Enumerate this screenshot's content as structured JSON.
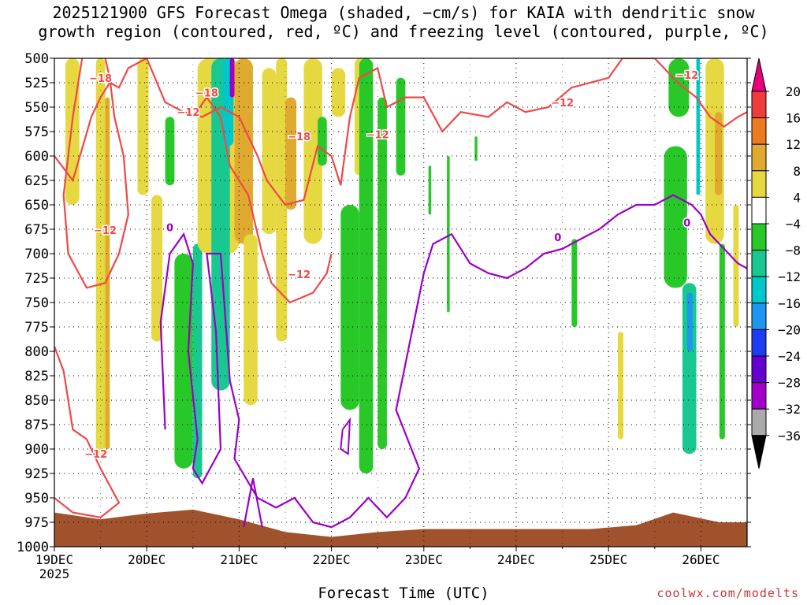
{
  "title": {
    "line1": "2025121900 GFS Forecast Omega (shaded, −cm/s) for KAIA with dendritic snow",
    "line2": "growth region (contoured, red, ºC) and freezing level (contoured, purple, ºC)"
  },
  "xlabel": "Forecast Time (UTC)",
  "credit": "coolwx.com/modelts",
  "colors": {
    "ground": "#a0522d",
    "dgz_contour": "#f04848",
    "freezing_contour": "#9a00c8",
    "grid": "#000000"
  },
  "chart_data": {
    "type": "heatmap",
    "title": "2025121900 GFS Forecast Omega for KAIA",
    "xlabel": "Forecast Time (UTC)",
    "ylabel": "Pressure (hPa)",
    "y_ticks": [
      500,
      525,
      550,
      575,
      600,
      625,
      650,
      675,
      700,
      725,
      750,
      775,
      800,
      825,
      850,
      875,
      900,
      925,
      950,
      975,
      1000
    ],
    "ylim": [
      1000,
      500
    ],
    "x_ticks": [
      {
        "label": "19DEC",
        "sublabel": "2025",
        "day": 0
      },
      {
        "label": "20DEC",
        "day": 1
      },
      {
        "label": "21DEC",
        "day": 2
      },
      {
        "label": "22DEC",
        "day": 3
      },
      {
        "label": "23DEC",
        "day": 4
      },
      {
        "label": "24DEC",
        "day": 5
      },
      {
        "label": "25DEC",
        "day": 6
      },
      {
        "label": "26DEC",
        "day": 7
      }
    ],
    "xlim_days": [
      0,
      7.5
    ],
    "colorbar": {
      "labels": [
        "20",
        "16",
        "12",
        "8",
        "4",
        "−4",
        "−8",
        "−12",
        "−16",
        "−20",
        "−24",
        "−28",
        "−32",
        "−36"
      ],
      "colors": [
        "#e8007a",
        "#ee3c3c",
        "#ee7a20",
        "#e0aa30",
        "#e6d840",
        "#ffffff",
        "#28c828",
        "#18c890",
        "#00c8c8",
        "#1e96f0",
        "#1e3cf0",
        "#6400d0",
        "#a000c8",
        "#aaaaaa",
        "#000000"
      ]
    },
    "contour_labels": {
      "dgz": [
        "−18",
        "−18",
        "−12",
        "−12",
        "−12",
        "−12",
        "−12",
        "−18",
        "−12",
        "−12",
        "−12"
      ],
      "freezing": [
        "0",
        "0",
        "0"
      ]
    },
    "shaded_regions": [
      {
        "day": 0.12,
        "width": 0.15,
        "p_top": 500,
        "p_bot": 650,
        "value": 4
      },
      {
        "day": 0.45,
        "width": 0.1,
        "p_top": 500,
        "p_bot": 905,
        "value": 4
      },
      {
        "day": 0.55,
        "width": 0.05,
        "p_top": 540,
        "p_bot": 900,
        "value": 8
      },
      {
        "day": 0.9,
        "width": 0.12,
        "p_top": 500,
        "p_bot": 640,
        "value": 4
      },
      {
        "day": 1.05,
        "width": 0.12,
        "p_top": 640,
        "p_bot": 790,
        "value": 4
      },
      {
        "day": 1.2,
        "width": 0.1,
        "p_top": 560,
        "p_bot": 630,
        "value": -4
      },
      {
        "day": 1.3,
        "width": 0.2,
        "p_top": 700,
        "p_bot": 920,
        "value": -4
      },
      {
        "day": 1.5,
        "width": 0.1,
        "p_top": 690,
        "p_bot": 930,
        "value": -8
      },
      {
        "day": 1.55,
        "width": 0.45,
        "p_top": 500,
        "p_bot": 700,
        "value": 4
      },
      {
        "day": 1.7,
        "width": 0.2,
        "p_top": 500,
        "p_bot": 840,
        "value": -8
      },
      {
        "day": 1.82,
        "width": 0.12,
        "p_top": 500,
        "p_bot": 590,
        "value": -12
      },
      {
        "day": 1.9,
        "width": 0.05,
        "p_top": 500,
        "p_bot": 540,
        "value": -28
      },
      {
        "day": 1.95,
        "width": 0.2,
        "p_top": 500,
        "p_bot": 690,
        "value": 8
      },
      {
        "day": 2.05,
        "width": 0.15,
        "p_top": 680,
        "p_bot": 855,
        "value": 4
      },
      {
        "day": 2.25,
        "width": 0.15,
        "p_top": 510,
        "p_bot": 680,
        "value": 4
      },
      {
        "day": 2.4,
        "width": 0.12,
        "p_top": 500,
        "p_bot": 790,
        "value": 4
      },
      {
        "day": 2.5,
        "width": 0.12,
        "p_top": 540,
        "p_bot": 655,
        "value": 8
      },
      {
        "day": 2.7,
        "width": 0.2,
        "p_top": 500,
        "p_bot": 690,
        "value": 4
      },
      {
        "day": 2.85,
        "width": 0.1,
        "p_top": 560,
        "p_bot": 610,
        "value": -4
      },
      {
        "day": 3.0,
        "width": 0.15,
        "p_top": 510,
        "p_bot": 560,
        "value": 4
      },
      {
        "day": 3.1,
        "width": 0.2,
        "p_top": 650,
        "p_bot": 860,
        "value": -4
      },
      {
        "day": 3.25,
        "width": 0.12,
        "p_top": 500,
        "p_bot": 620,
        "value": 4
      },
      {
        "day": 3.3,
        "width": 0.15,
        "p_top": 500,
        "p_bot": 925,
        "value": -4
      },
      {
        "day": 3.5,
        "width": 0.1,
        "p_top": 540,
        "p_bot": 900,
        "value": -4
      },
      {
        "day": 3.7,
        "width": 0.1,
        "p_top": 520,
        "p_bot": 620,
        "value": -4
      },
      {
        "day": 4.05,
        "width": 0.03,
        "p_top": 610,
        "p_bot": 660,
        "value": -4
      },
      {
        "day": 4.25,
        "width": 0.03,
        "p_top": 600,
        "p_bot": 760,
        "value": -4
      },
      {
        "day": 4.55,
        "width": 0.03,
        "p_top": 580,
        "p_bot": 605,
        "value": -4
      },
      {
        "day": 5.6,
        "width": 0.06,
        "p_top": 685,
        "p_bot": 775,
        "value": -4
      },
      {
        "day": 6.1,
        "width": 0.06,
        "p_top": 780,
        "p_bot": 890,
        "value": 4
      },
      {
        "day": 6.65,
        "width": 0.22,
        "p_top": 500,
        "p_bot": 560,
        "value": -4
      },
      {
        "day": 6.6,
        "width": 0.25,
        "p_top": 590,
        "p_bot": 735,
        "value": -4
      },
      {
        "day": 6.8,
        "width": 0.15,
        "p_top": 730,
        "p_bot": 905,
        "value": -8
      },
      {
        "day": 6.85,
        "width": 0.06,
        "p_top": 740,
        "p_bot": 800,
        "value": -16
      },
      {
        "day": 6.95,
        "width": 0.04,
        "p_top": 500,
        "p_bot": 640,
        "value": -12
      },
      {
        "day": 7.05,
        "width": 0.2,
        "p_top": 500,
        "p_bot": 690,
        "value": 4
      },
      {
        "day": 7.15,
        "width": 0.08,
        "p_top": 555,
        "p_bot": 640,
        "value": 8
      },
      {
        "day": 7.2,
        "width": 0.06,
        "p_top": 690,
        "p_bot": 890,
        "value": -4
      },
      {
        "day": 7.35,
        "width": 0.06,
        "p_top": 650,
        "p_bot": 775,
        "value": 4
      },
      {
        "day": 7.6,
        "width": 0.1,
        "p_top": 500,
        "p_bot": 560,
        "value": 4
      }
    ],
    "dgz_top_contour": [
      [
        0,
        600
      ],
      [
        0.2,
        625
      ],
      [
        0.4,
        560
      ],
      [
        0.5,
        540
      ],
      [
        0.6,
        525
      ],
      [
        0.7,
        530
      ],
      [
        0.8,
        510
      ],
      [
        1.0,
        500
      ],
      [
        1.2,
        545
      ],
      [
        1.4,
        555
      ],
      [
        1.6,
        560
      ],
      [
        1.8,
        550
      ],
      [
        2.0,
        560
      ],
      [
        2.2,
        600
      ],
      [
        2.3,
        625
      ],
      [
        2.5,
        650
      ],
      [
        2.7,
        645
      ],
      [
        2.85,
        590
      ],
      [
        3.0,
        600
      ],
      [
        3.1,
        630
      ],
      [
        3.2,
        560
      ],
      [
        3.3,
        520
      ],
      [
        3.5,
        510
      ],
      [
        3.6,
        550
      ],
      [
        3.8,
        540
      ],
      [
        4.0,
        540
      ],
      [
        4.2,
        575
      ],
      [
        4.4,
        555
      ],
      [
        4.7,
        560
      ],
      [
        4.9,
        545
      ],
      [
        5.1,
        555
      ],
      [
        5.35,
        550
      ],
      [
        5.6,
        530
      ],
      [
        5.8,
        525
      ],
      [
        6.0,
        520
      ],
      [
        6.15,
        500
      ],
      [
        6.5,
        500
      ],
      [
        6.6,
        510
      ],
      [
        6.75,
        525
      ],
      [
        6.95,
        540
      ],
      [
        7.1,
        560
      ],
      [
        7.25,
        570
      ],
      [
        7.4,
        560
      ],
      [
        7.5,
        555
      ]
    ],
    "dgz_bottom_contour": [
      [
        0,
        795
      ],
      [
        0.1,
        820
      ],
      [
        0.2,
        880
      ],
      [
        0.35,
        890
      ],
      [
        0.5,
        920
      ],
      [
        0.7,
        955
      ],
      [
        0.5,
        970
      ],
      [
        0.2,
        965
      ],
      [
        0,
        950
      ]
    ],
    "freezing_contour": [
      [
        1.2,
        880
      ],
      [
        1.15,
        770
      ],
      [
        1.25,
        700
      ],
      [
        1.4,
        680
      ],
      [
        1.5,
        710
      ],
      [
        1.45,
        800
      ],
      [
        1.55,
        890
      ],
      [
        1.5,
        920
      ],
      [
        1.6,
        935
      ],
      [
        1.8,
        900
      ],
      [
        1.75,
        780
      ],
      [
        1.65,
        700
      ],
      [
        1.8,
        700
      ],
      [
        1.9,
        830
      ],
      [
        2.0,
        870
      ],
      [
        1.95,
        910
      ],
      [
        2.2,
        950
      ],
      [
        2.4,
        960
      ],
      [
        2.6,
        950
      ],
      [
        2.8,
        975
      ],
      [
        3.0,
        980
      ],
      [
        3.2,
        970
      ],
      [
        3.4,
        950
      ],
      [
        3.6,
        970
      ],
      [
        3.8,
        950
      ],
      [
        3.95,
        920
      ],
      [
        3.7,
        860
      ],
      [
        3.85,
        790
      ],
      [
        4.0,
        720
      ],
      [
        4.1,
        690
      ],
      [
        4.3,
        680
      ],
      [
        4.5,
        710
      ],
      [
        4.7,
        720
      ],
      [
        4.9,
        725
      ],
      [
        5.1,
        715
      ],
      [
        5.3,
        700
      ],
      [
        5.5,
        695
      ],
      [
        5.7,
        685
      ],
      [
        5.9,
        675
      ],
      [
        6.1,
        660
      ],
      [
        6.3,
        650
      ],
      [
        6.5,
        650
      ],
      [
        6.7,
        640
      ],
      [
        6.9,
        650
      ],
      [
        7.0,
        660
      ],
      [
        7.1,
        680
      ],
      [
        7.2,
        690
      ],
      [
        7.3,
        700
      ],
      [
        7.4,
        710
      ],
      [
        7.5,
        715
      ]
    ]
  }
}
